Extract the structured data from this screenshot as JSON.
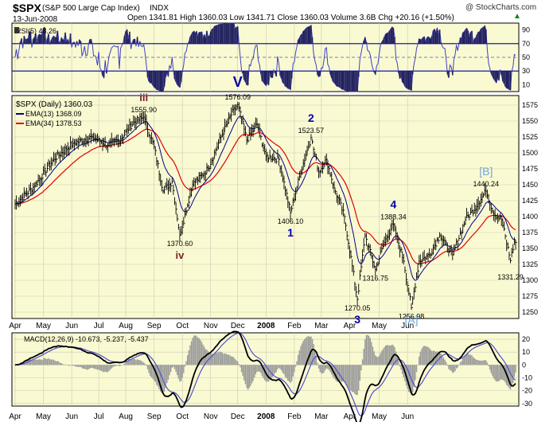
{
  "header": {
    "symbol": "$SPX",
    "name": "(S&P 500 Large Cap Index)",
    "exchange": "INDX",
    "date": "13-Jun-2008",
    "quote": "Open 1341.81  High 1360.03  Low 1341.71  Close 1360.03  Volume 3.6B  Chg +20.16 (+1.50%)",
    "quote_icon": "up-triangle",
    "credit": "@ StockCharts.com"
  },
  "colors": {
    "panel_bg": "#fafad2",
    "price": "#000000",
    "ema13": "#00008b",
    "ema34": "#e00000",
    "rsi": "#4040c0",
    "macd": "#000000",
    "signal": "#5050d0",
    "hist": "#9a9a9a",
    "wave_blue": "#0000aa",
    "wave_maroon": "#7a1f2a",
    "wave_light": "#6fa8dc"
  },
  "rsi_panel": {
    "legend": "RSI(5) 48.26",
    "ticks": [
      "90",
      "70",
      "50",
      "30",
      "10"
    ]
  },
  "price_panel": {
    "legend_title": "$SPX (Daily) 1360.03",
    "legend_ema13": "EMA(13) 1368.09",
    "legend_ema34": "EMA(34) 1378.53",
    "ticks": [
      "1575",
      "1550",
      "1525",
      "1500",
      "1475",
      "1450",
      "1425",
      "1400",
      "1375",
      "1350",
      "1325",
      "1300",
      "1275",
      "1250"
    ]
  },
  "macd_panel": {
    "legend": "MACD(12,26,9) -10.673, -5.237, -5.437",
    "ticks": [
      "20",
      "10",
      "0",
      "-10",
      "-20",
      "-30"
    ]
  },
  "x_axis": {
    "months": [
      "Apr",
      "May",
      "Jun",
      "Jul",
      "Aug",
      "Sep",
      "Oct",
      "Nov",
      "Dec",
      "2008",
      "Feb",
      "Mar",
      "Apr",
      "May",
      "Jun"
    ]
  },
  "chart_data": {
    "type": "line",
    "ylim": [
      1240,
      1590
    ],
    "anchors": [
      {
        "x": 0,
        "y": 1420
      },
      {
        "x": 15,
        "y": 1448
      },
      {
        "x": 30,
        "y": 1490
      },
      {
        "x": 45,
        "y": 1515
      },
      {
        "x": 60,
        "y": 1525
      },
      {
        "x": 72,
        "y": 1512
      },
      {
        "x": 82,
        "y": 1522
      },
      {
        "x": 92,
        "y": 1548
      },
      {
        "x": 100,
        "y": 1556
      },
      {
        "x": 108,
        "y": 1510
      },
      {
        "x": 115,
        "y": 1440
      },
      {
        "x": 122,
        "y": 1455
      },
      {
        "x": 128,
        "y": 1371
      },
      {
        "x": 138,
        "y": 1450
      },
      {
        "x": 150,
        "y": 1475
      },
      {
        "x": 160,
        "y": 1525
      },
      {
        "x": 168,
        "y": 1560
      },
      {
        "x": 173,
        "y": 1576
      },
      {
        "x": 180,
        "y": 1520
      },
      {
        "x": 188,
        "y": 1545
      },
      {
        "x": 195,
        "y": 1495
      },
      {
        "x": 205,
        "y": 1490
      },
      {
        "x": 214,
        "y": 1406
      },
      {
        "x": 222,
        "y": 1470
      },
      {
        "x": 230,
        "y": 1524
      },
      {
        "x": 236,
        "y": 1470
      },
      {
        "x": 242,
        "y": 1490
      },
      {
        "x": 248,
        "y": 1445
      },
      {
        "x": 256,
        "y": 1400
      },
      {
        "x": 266,
        "y": 1270
      },
      {
        "x": 272,
        "y": 1370
      },
      {
        "x": 280,
        "y": 1317
      },
      {
        "x": 288,
        "y": 1365
      },
      {
        "x": 294,
        "y": 1388
      },
      {
        "x": 302,
        "y": 1330
      },
      {
        "x": 308,
        "y": 1257
      },
      {
        "x": 314,
        "y": 1330
      },
      {
        "x": 322,
        "y": 1340
      },
      {
        "x": 330,
        "y": 1370
      },
      {
        "x": 340,
        "y": 1340
      },
      {
        "x": 350,
        "y": 1395
      },
      {
        "x": 360,
        "y": 1420
      },
      {
        "x": 366,
        "y": 1440
      },
      {
        "x": 372,
        "y": 1405
      },
      {
        "x": 378,
        "y": 1395
      },
      {
        "x": 385,
        "y": 1331
      },
      {
        "x": 388,
        "y": 1360
      }
    ],
    "annotations": [
      {
        "text": "V",
        "x": 173,
        "y": 1576,
        "style": "wave_big"
      },
      {
        "text": "1576.09",
        "x": 173,
        "y": 1576,
        "style": "value"
      },
      {
        "text": "iii",
        "x": 100,
        "y": 1556,
        "style": "wave_roman"
      },
      {
        "text": "1555.90",
        "x": 100,
        "y": 1556,
        "style": "value"
      },
      {
        "text": "iv",
        "x": 128,
        "y": 1371,
        "style": "wave_roman"
      },
      {
        "text": "1370.60",
        "x": 128,
        "y": 1371,
        "style": "value"
      },
      {
        "text": "2",
        "x": 230,
        "y": 1524,
        "style": "wave_num"
      },
      {
        "text": "1523.57",
        "x": 230,
        "y": 1524,
        "style": "value"
      },
      {
        "text": "1",
        "x": 214,
        "y": 1406,
        "style": "wave_num"
      },
      {
        "text": "1406.10",
        "x": 214,
        "y": 1406,
        "style": "value"
      },
      {
        "text": "3",
        "x": 266,
        "y": 1270,
        "style": "wave_num"
      },
      {
        "text": "1270.05",
        "x": 266,
        "y": 1270,
        "style": "value"
      },
      {
        "text": "4",
        "x": 294,
        "y": 1388,
        "style": "wave_num"
      },
      {
        "text": "1388.34",
        "x": 294,
        "y": 1388,
        "style": "value"
      },
      {
        "text": "1316.75",
        "x": 280,
        "y": 1317,
        "style": "value"
      },
      {
        "text": "[A]",
        "x": 308,
        "y": 1257,
        "style": "wave_bracket"
      },
      {
        "text": "1256.98",
        "x": 308,
        "y": 1257,
        "style": "value"
      },
      {
        "text": "[B]",
        "x": 366,
        "y": 1440,
        "style": "wave_bracket"
      },
      {
        "text": "1440.24",
        "x": 366,
        "y": 1440,
        "style": "value"
      },
      {
        "text": "1331.29",
        "x": 385,
        "y": 1331,
        "style": "value"
      }
    ],
    "grid": true,
    "rsi_ylim": [
      0,
      100
    ],
    "macd_ylim": [
      -32,
      25
    ]
  }
}
